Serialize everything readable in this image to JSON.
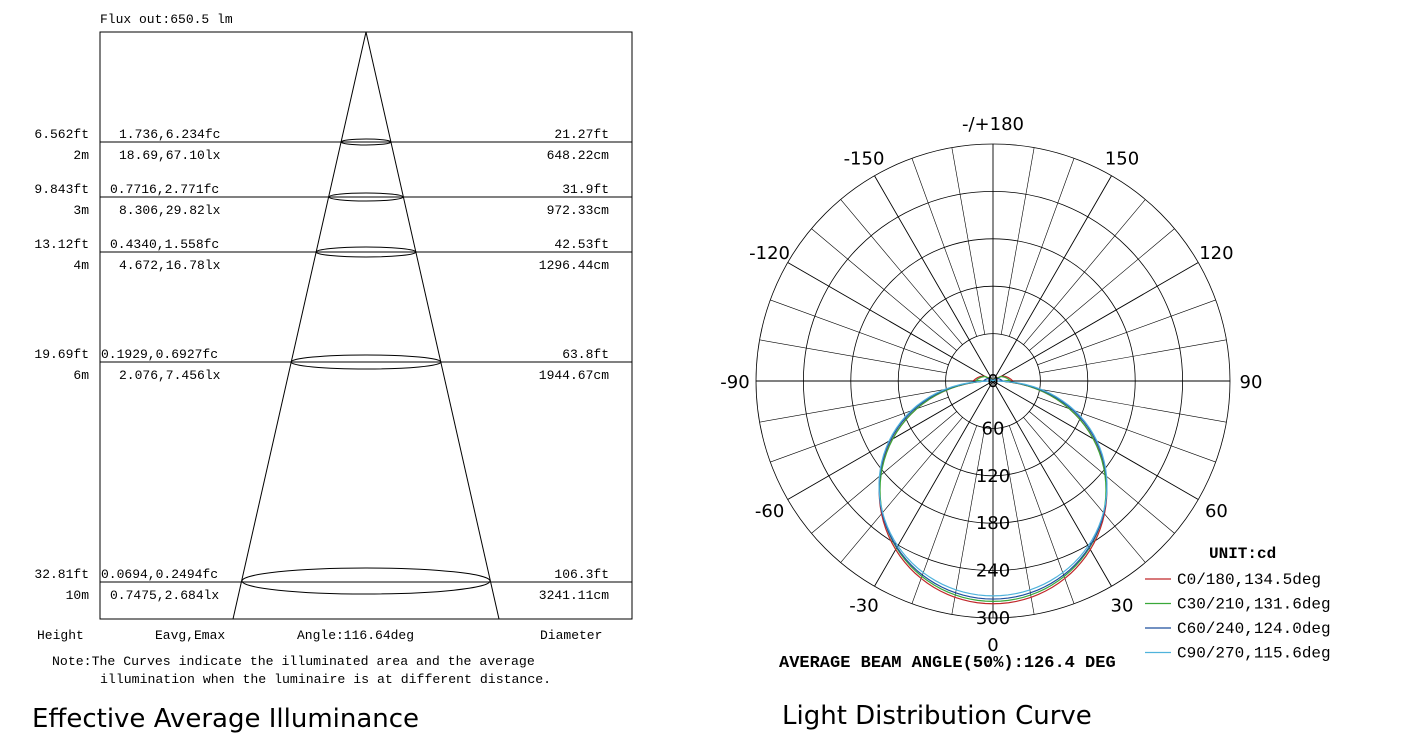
{
  "chart_data": [
    {
      "type": "illuminance_cone",
      "flux_label": "Flux out:650.5 lm",
      "rows": [
        {
          "height_ft": "6.562ft",
          "height_m": "2m",
          "eavg_fc": "1.736,6.234fc",
          "eavg_lx": "18.69,67.10lx",
          "diameter_ft": "21.27ft",
          "diameter_cm": "648.22cm",
          "distance_m": 2
        },
        {
          "height_ft": "9.843ft",
          "height_m": "3m",
          "eavg_fc": "0.7716,2.771fc",
          "eavg_lx": "8.306,29.82lx",
          "diameter_ft": "31.9ft",
          "diameter_cm": "972.33cm",
          "distance_m": 3
        },
        {
          "height_ft": "13.12ft",
          "height_m": "4m",
          "eavg_fc": "0.4340,1.558fc",
          "eavg_lx": "4.672,16.78lx",
          "diameter_ft": "42.53ft",
          "diameter_cm": "1296.44cm",
          "distance_m": 4
        },
        {
          "height_ft": "19.69ft",
          "height_m": "6m",
          "eavg_fc": "0.1929,0.6927fc",
          "eavg_lx": "2.076,7.456lx",
          "diameter_ft": "63.8ft",
          "diameter_cm": "1944.67cm",
          "distance_m": 6
        },
        {
          "height_ft": "32.81ft",
          "height_m": "10m",
          "eavg_fc": "0.0694,0.2494fc",
          "eavg_lx": "0.7475,2.684lx",
          "diameter_ft": "106.3ft",
          "diameter_cm": "3241.11cm",
          "distance_m": 10
        }
      ],
      "footer": {
        "height": "Height",
        "eavg": "Eavg,Emax",
        "angle": "Angle:116.64deg",
        "diameter": "Diameter"
      },
      "note_line1": "Note:The Curves indicate the illuminated area and the average",
      "note_line2": "illumination when the luminaire is at different distance.",
      "caption": "Effective Average Illuminance"
    },
    {
      "type": "polar",
      "caption": "Light Distribution Curve",
      "unit": "UNIT:cd",
      "beam_angle": "AVERAGE BEAM ANGLE(50%):126.4 DEG",
      "angle_labels": [
        {
          "text": "-/+180",
          "deg": 180
        },
        {
          "text": "150",
          "deg": 150
        },
        {
          "text": "-150",
          "deg": -150
        },
        {
          "text": "120",
          "deg": 120
        },
        {
          "text": "-120",
          "deg": -120
        },
        {
          "text": "90",
          "deg": 90
        },
        {
          "text": "-90",
          "deg": -90
        },
        {
          "text": "60",
          "deg": 60
        },
        {
          "text": "-60",
          "deg": -60
        },
        {
          "text": "30",
          "deg": 30
        },
        {
          "text": "-30",
          "deg": -30
        },
        {
          "text": "0",
          "deg": 0
        }
      ],
      "radial_ticks": [
        "0",
        "60",
        "120",
        "180",
        "240",
        "300"
      ],
      "rmax": 300,
      "series": [
        {
          "name": "C0/180,134.5deg",
          "color": "#c0282a",
          "peak": 282,
          "spread": 0.94,
          "back": 25
        },
        {
          "name": "C30/210,131.6deg",
          "color": "#3aa83a",
          "peak": 279,
          "spread": 0.93,
          "back": 22
        },
        {
          "name": "C60/240,124.0deg",
          "color": "#1f4f9e",
          "peak": 276,
          "spread": 0.88,
          "back": 12
        },
        {
          "name": "C90/270,115.6deg",
          "color": "#4fb3dc",
          "peak": 272,
          "spread": 0.84,
          "back": 5
        }
      ]
    }
  ]
}
